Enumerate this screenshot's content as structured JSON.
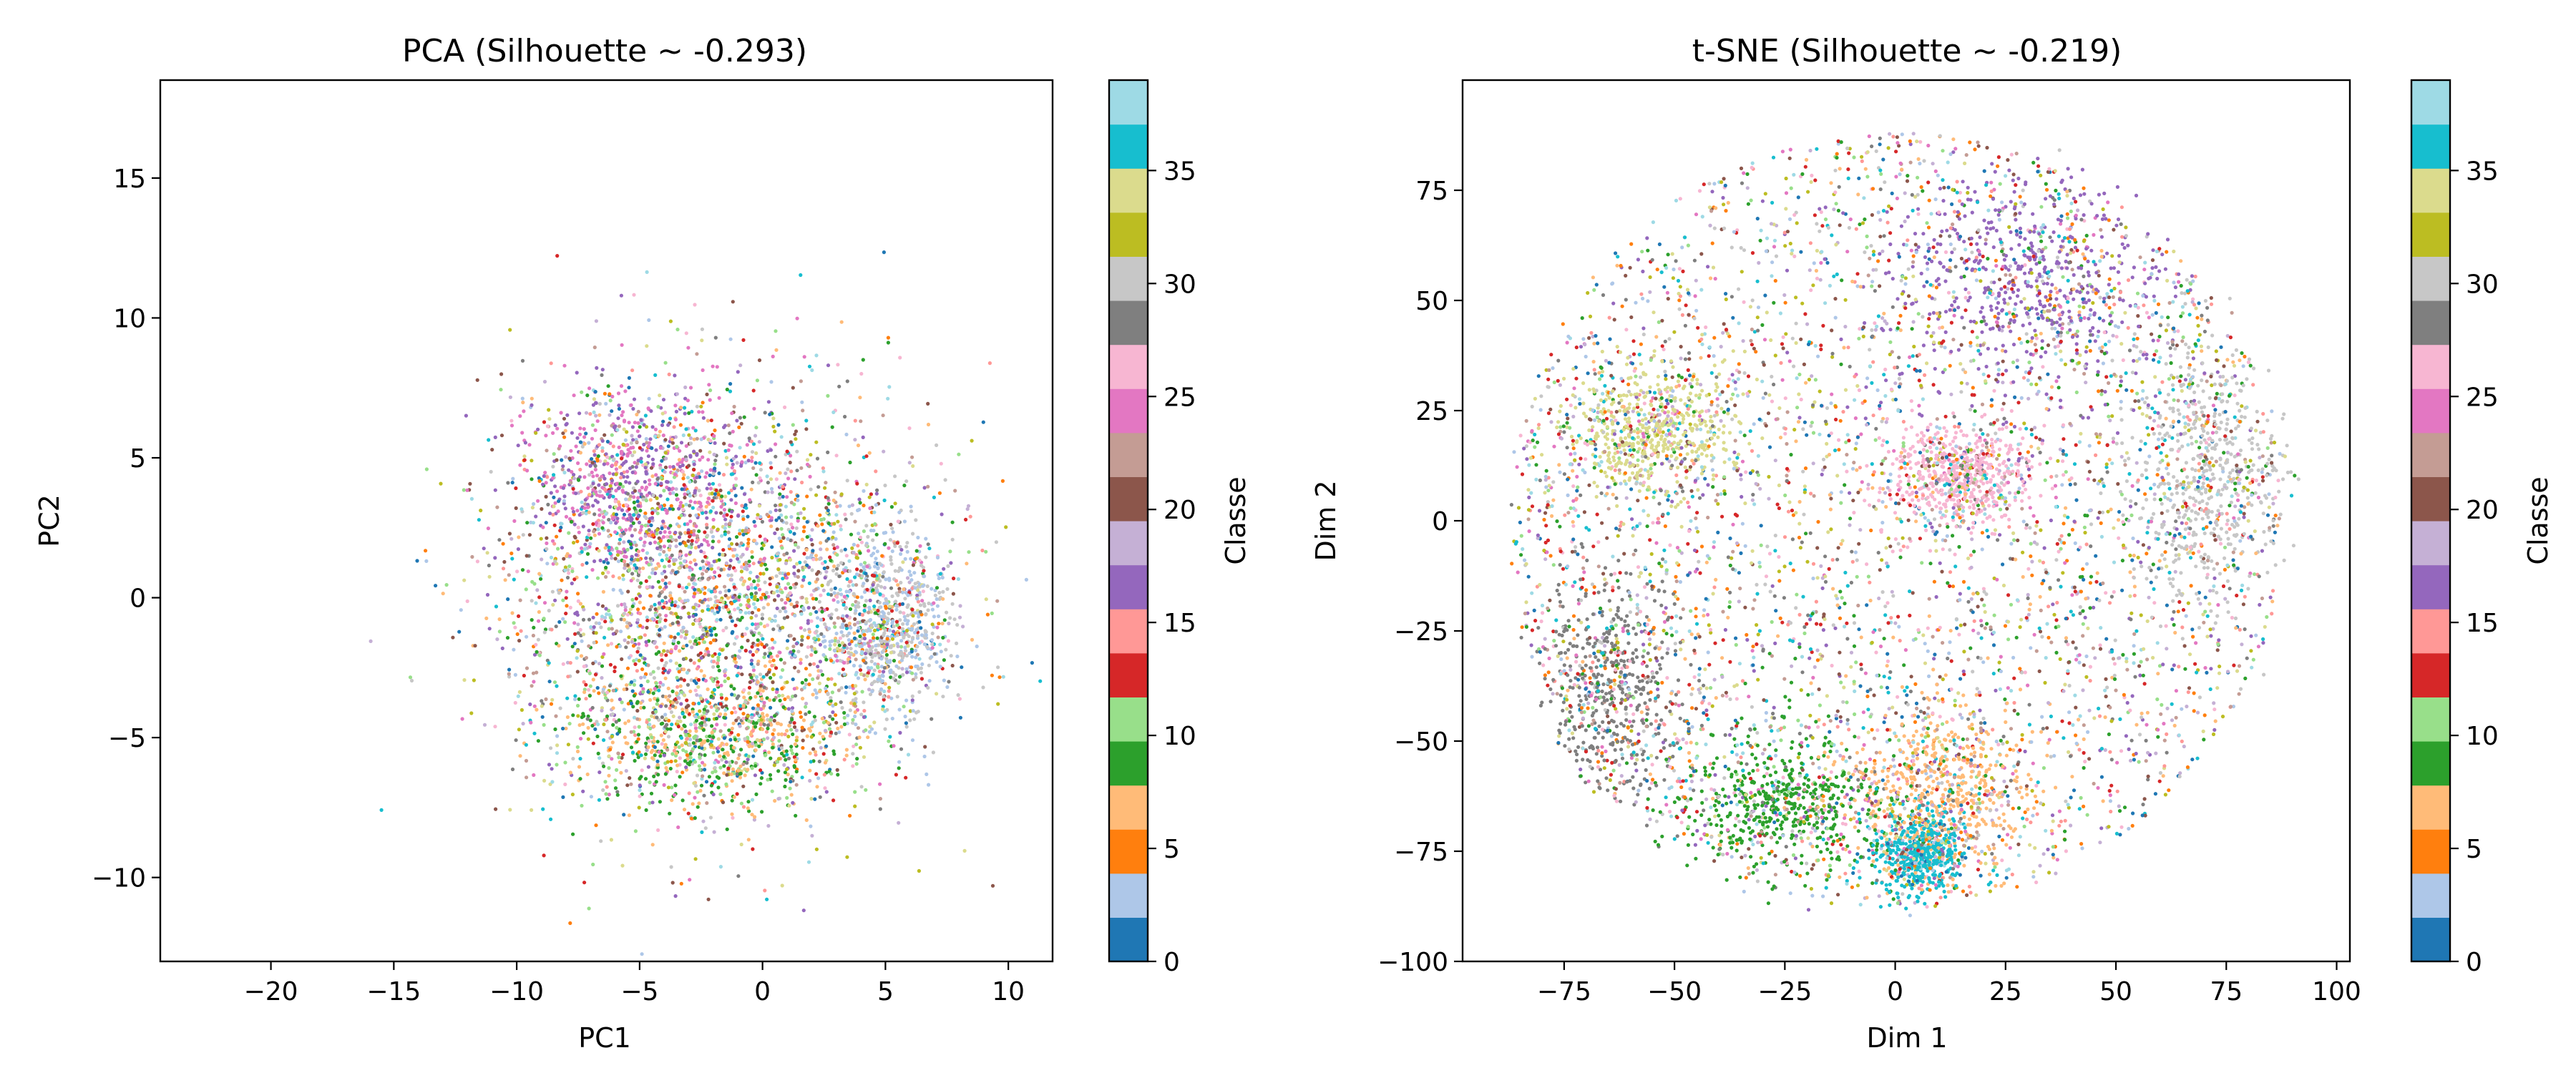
{
  "chart_data": [
    {
      "type": "scatter",
      "title": "PCA (Silhouette ~ -0.293)",
      "xlabel": "PC1",
      "ylabel": "PC2",
      "xlim": [
        -24.5,
        11.8
      ],
      "ylim": [
        -13,
        18.5
      ],
      "xticks": [
        -20,
        -15,
        -10,
        -5,
        0,
        5,
        10
      ],
      "yticks": [
        -10,
        -5,
        0,
        5,
        10,
        15
      ],
      "grid": false,
      "colorbar": {
        "label": "Classe",
        "range": [
          0,
          39
        ],
        "ticks": [
          0,
          5,
          10,
          15,
          20,
          25,
          30,
          35
        ],
        "colormap": "tab20"
      },
      "clusters": [
        {
          "label": "main cloud, classes mixed",
          "center": [
            -2,
            0
          ],
          "spread": [
            4.2,
            3.6
          ],
          "class_bias": "mixed"
        },
        {
          "label": "upper-left purple/pink region",
          "center": [
            -5,
            4
          ],
          "spread": [
            3.5,
            2.5
          ],
          "class_bias": [
            16,
            17,
            24,
            25
          ]
        },
        {
          "label": "right light-blue/grey region",
          "center": [
            5,
            -1
          ],
          "spread": [
            2,
            2.5
          ],
          "class_bias": [
            2,
            3,
            30,
            31
          ]
        },
        {
          "label": "lower green/orange region",
          "center": [
            -2,
            -5
          ],
          "spread": [
            4,
            1.8
          ],
          "class_bias": [
            8,
            9,
            10,
            6,
            7
          ]
        }
      ]
    },
    {
      "type": "scatter",
      "title": "t-SNE (Silhouette ~ -0.219)",
      "xlabel": "Dim 1",
      "ylabel": "Dim 2",
      "xlim": [
        -98,
        103
      ],
      "ylim": [
        -100,
        100
      ],
      "xticks": [
        -75,
        -50,
        -25,
        0,
        25,
        50,
        75,
        100
      ],
      "yticks": [
        -100,
        -75,
        -50,
        -25,
        0,
        25,
        50,
        75
      ],
      "grid": false,
      "colorbar": {
        "label": "Classe",
        "range": [
          0,
          39
        ],
        "ticks": [
          0,
          5,
          10,
          15,
          20,
          25,
          30,
          35
        ],
        "colormap": "tab20"
      },
      "clusters": [
        {
          "label": "whole disc, classes mixed",
          "center": [
            0,
            0
          ],
          "radius": 88,
          "class_bias": "mixed"
        },
        {
          "label": "upper purple region",
          "center": [
            30,
            55
          ],
          "spread": [
            25,
            20
          ],
          "class_bias": [
            16,
            17
          ]
        },
        {
          "label": "lower-left grey region",
          "center": [
            -65,
            -40
          ],
          "spread": [
            15,
            25
          ],
          "class_bias": [
            28,
            29
          ]
        },
        {
          "label": "bottom green region",
          "center": [
            -25,
            -65
          ],
          "spread": [
            20,
            12
          ],
          "class_bias": [
            8,
            9
          ]
        },
        {
          "label": "bottom orange region",
          "center": [
            10,
            -60
          ],
          "spread": [
            18,
            15
          ],
          "class_bias": [
            6,
            7
          ]
        },
        {
          "label": "right light-grey region",
          "center": [
            70,
            10
          ],
          "spread": [
            15,
            25
          ],
          "class_bias": [
            30,
            31
          ]
        },
        {
          "label": "center pink region",
          "center": [
            15,
            10
          ],
          "spread": [
            15,
            10
          ],
          "class_bias": [
            26,
            27
          ]
        },
        {
          "label": "left olive region",
          "center": [
            -55,
            20
          ],
          "spread": [
            15,
            12
          ],
          "class_bias": [
            34,
            35
          ]
        },
        {
          "label": "lower cyan region",
          "center": [
            5,
            -75
          ],
          "spread": [
            8,
            8
          ],
          "class_bias": [
            36,
            37
          ]
        }
      ]
    }
  ],
  "colors": {
    "tab20": [
      "#1f77b4",
      "#aec7e8",
      "#ff7f0e",
      "#ffbb78",
      "#2ca02c",
      "#98df8a",
      "#d62728",
      "#ff9896",
      "#9467bd",
      "#c5b0d5",
      "#8c564b",
      "#c49c94",
      "#e377c2",
      "#f7b6d2",
      "#7f7f7f",
      "#c7c7c7",
      "#bcbd22",
      "#dbdb8d",
      "#17becf",
      "#9edae5"
    ]
  }
}
